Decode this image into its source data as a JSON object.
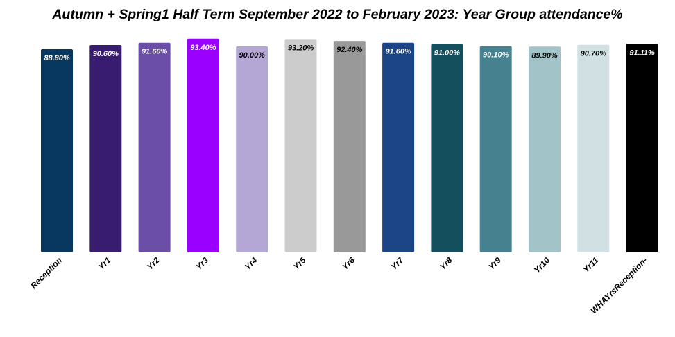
{
  "chart_data": {
    "type": "bar",
    "title": "Autumn + Spring1 Half Term September 2022 to February 2023: Year Group attendance%",
    "xlabel": "",
    "ylabel": "",
    "ylim": [
      0,
      100
    ],
    "grid": false,
    "legend": "none",
    "categories": [
      "Reception",
      "Yr1",
      "Yr2",
      "Yr3",
      "Yr4",
      "Yr5",
      "Yr6",
      "Yr7",
      "Yr8",
      "Yr9",
      "Yr10",
      "Yr11",
      "WHAYrsReception-"
    ],
    "values": [
      88.8,
      90.6,
      91.6,
      93.4,
      90.0,
      93.2,
      92.4,
      91.6,
      91.0,
      90.1,
      89.9,
      90.7,
      91.11
    ],
    "data_labels": [
      "88.80%",
      "90.60%",
      "91.60%",
      "93.40%",
      "90.00%",
      "93.20%",
      "92.40%",
      "91.60%",
      "91.00%",
      "90.10%",
      "89.90%",
      "90.70%",
      "91.11%"
    ],
    "colors": [
      "#08375f",
      "#371c6f",
      "#6a4ea8",
      "#9a00ff",
      "#b4a7d6",
      "#cccccc",
      "#999999",
      "#1c4587",
      "#134f5c",
      "#45818e",
      "#a2c4c9",
      "#d0e0e3",
      "#000000"
    ],
    "label_colors": [
      "#ffffff",
      "#ffffff",
      "#ffffff",
      "#ffffff",
      "#000000",
      "#000000",
      "#000000",
      "#ffffff",
      "#ffffff",
      "#ffffff",
      "#000000",
      "#000000",
      "#ffffff"
    ]
  }
}
